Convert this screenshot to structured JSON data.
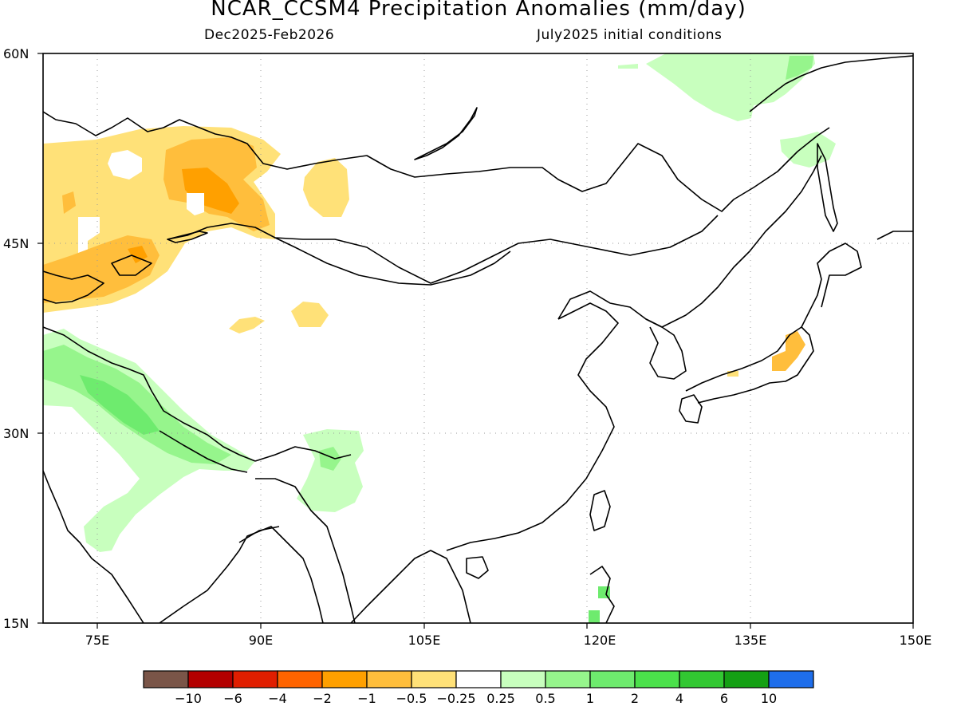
{
  "header": {
    "title": "NCAR_CCSM4 Precipitation Anomalies (mm/day)",
    "period": "Dec2025-Feb2026",
    "init": "July2025 initial conditions"
  },
  "map": {
    "lat_range": [
      15,
      60
    ],
    "lon_range": [
      70,
      150
    ],
    "lat_ticks": [
      "60N",
      "45N",
      "30N",
      "15N"
    ],
    "lon_ticks": [
      "75E",
      "90E",
      "105E",
      "120E",
      "135E",
      "150E"
    ],
    "grid": "dotted"
  },
  "colorbar": {
    "colors": [
      "#7a5548",
      "#b30000",
      "#e01e00",
      "#ff6400",
      "#ffa000",
      "#ffbe3c",
      "#ffe178",
      "#ffffff",
      "#c8ffbe",
      "#96f58c",
      "#6eeb6e",
      "#4be14b",
      "#32c832",
      "#14a014",
      "#1e6eeb"
    ],
    "labels": [
      "−10",
      "−6",
      "−4",
      "−2",
      "−1",
      "−0.5",
      "−0.25",
      "0.25",
      "0.5",
      "1",
      "2",
      "4",
      "6",
      "10"
    ]
  }
}
